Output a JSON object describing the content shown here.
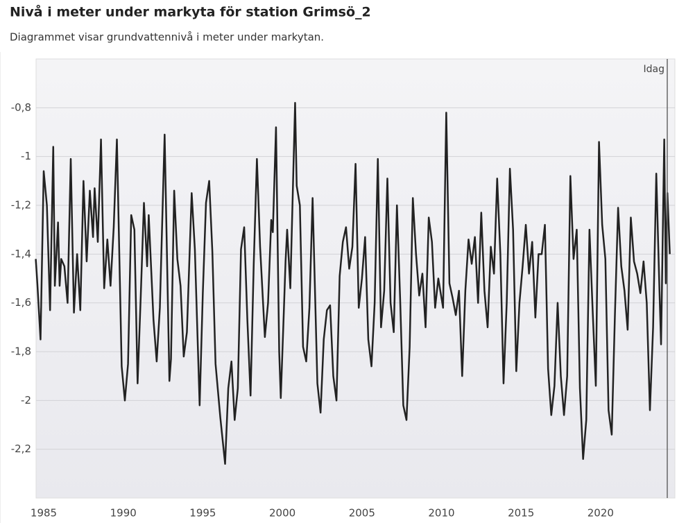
{
  "chart_data": {
    "type": "line",
    "title": "Nivå i meter under markyta för station Grimsö_2",
    "subtitle": "Diagrammet visar grundvattennivå i meter under markytan.",
    "x": [
      1984.5,
      1984.6,
      1984.8,
      1985.0,
      1985.2,
      1985.4,
      1985.6,
      1985.7,
      1985.9,
      1986.0,
      1986.1,
      1986.3,
      1986.5,
      1986.7,
      1986.9,
      1987.1,
      1987.3,
      1987.5,
      1987.7,
      1987.9,
      1988.1,
      1988.2,
      1988.4,
      1988.6,
      1988.8,
      1989.0,
      1989.2,
      1989.4,
      1989.6,
      1989.9,
      1990.1,
      1990.3,
      1990.5,
      1990.7,
      1990.9,
      1991.1,
      1991.3,
      1991.5,
      1991.6,
      1991.9,
      1992.1,
      1992.3,
      1992.6,
      1992.9,
      1993.0,
      1993.2,
      1993.4,
      1993.6,
      1993.8,
      1994.0,
      1994.3,
      1994.5,
      1994.8,
      1995.0,
      1995.2,
      1995.4,
      1995.6,
      1995.8,
      1996.1,
      1996.4,
      1996.6,
      1996.8,
      1997.0,
      1997.2,
      1997.4,
      1997.6,
      1997.8,
      1998.0,
      1998.2,
      1998.4,
      1998.6,
      1998.9,
      1999.1,
      1999.3,
      1999.4,
      1999.6,
      1999.8,
      1999.9,
      2000.1,
      2000.2,
      2000.3,
      2000.5,
      2000.8,
      2000.9,
      2001.1,
      2001.3,
      2001.5,
      2001.7,
      2001.9,
      2002.2,
      2002.4,
      2002.6,
      2002.8,
      2003.0,
      2003.2,
      2003.4,
      2003.6,
      2003.8,
      2004.0,
      2004.2,
      2004.4,
      2004.6,
      2004.8,
      2005.0,
      2005.2,
      2005.4,
      2005.6,
      2005.8,
      2006.0,
      2006.2,
      2006.4,
      2006.6,
      2006.8,
      2007.0,
      2007.2,
      2007.4,
      2007.6,
      2007.8,
      2008.0,
      2008.2,
      2008.4,
      2008.6,
      2008.8,
      2009.0,
      2009.2,
      2009.4,
      2009.6,
      2009.8,
      2010.1,
      2010.3,
      2010.5,
      2010.7,
      2010.9,
      2011.1,
      2011.3,
      2011.5,
      2011.7,
      2011.9,
      2012.1,
      2012.3,
      2012.5,
      2012.7,
      2012.9,
      2013.1,
      2013.3,
      2013.5,
      2013.7,
      2013.9,
      2014.1,
      2014.3,
      2014.5,
      2014.7,
      2014.9,
      2015.1,
      2015.3,
      2015.5,
      2015.7,
      2015.9,
      2016.1,
      2016.3,
      2016.5,
      2016.7,
      2016.9,
      2017.1,
      2017.3,
      2017.5,
      2017.7,
      2017.9,
      2018.1,
      2018.3,
      2018.5,
      2018.7,
      2018.9,
      2019.1,
      2019.3,
      2019.5,
      2019.7,
      2019.9,
      2020.1,
      2020.3,
      2020.5,
      2020.7,
      2020.9,
      2021.1,
      2021.3,
      2021.5,
      2021.7,
      2021.9,
      2022.1,
      2022.3,
      2022.5,
      2022.7,
      2022.9,
      2023.1,
      2023.3,
      2023.5,
      2023.7,
      2023.8,
      2024.0,
      2024.1,
      2024.2,
      2024.35
    ],
    "values": [
      -1.42,
      -1.52,
      -1.75,
      -1.06,
      -1.2,
      -1.63,
      -0.96,
      -1.53,
      -1.27,
      -1.53,
      -1.42,
      -1.45,
      -1.6,
      -1.01,
      -1.64,
      -1.4,
      -1.63,
      -1.1,
      -1.43,
      -1.14,
      -1.33,
      -1.13,
      -1.35,
      -0.93,
      -1.54,
      -1.34,
      -1.53,
      -1.29,
      -0.93,
      -1.86,
      -2.0,
      -1.85,
      -1.24,
      -1.3,
      -1.93,
      -1.57,
      -1.19,
      -1.45,
      -1.24,
      -1.67,
      -1.84,
      -1.62,
      -0.91,
      -1.92,
      -1.83,
      -1.14,
      -1.42,
      -1.53,
      -1.82,
      -1.72,
      -1.15,
      -1.38,
      -2.02,
      -1.56,
      -1.19,
      -1.1,
      -1.39,
      -1.85,
      -2.07,
      -2.26,
      -1.95,
      -1.84,
      -2.08,
      -1.95,
      -1.38,
      -1.29,
      -1.67,
      -1.98,
      -1.44,
      -1.01,
      -1.37,
      -1.74,
      -1.6,
      -1.26,
      -1.31,
      -0.88,
      -1.8,
      -1.99,
      -1.62,
      -1.43,
      -1.3,
      -1.54,
      -0.78,
      -1.12,
      -1.2,
      -1.78,
      -1.84,
      -1.62,
      -1.17,
      -1.93,
      -2.05,
      -1.75,
      -1.63,
      -1.61,
      -1.9,
      -2.0,
      -1.49,
      -1.35,
      -1.29,
      -1.46,
      -1.37,
      -1.03,
      -1.62,
      -1.5,
      -1.33,
      -1.75,
      -1.86,
      -1.6,
      -1.01,
      -1.7,
      -1.55,
      -1.09,
      -1.6,
      -1.72,
      -1.2,
      -1.58,
      -2.02,
      -2.08,
      -1.78,
      -1.17,
      -1.4,
      -1.57,
      -1.48,
      -1.7,
      -1.25,
      -1.35,
      -1.62,
      -1.5,
      -1.62,
      -0.82,
      -1.52,
      -1.58,
      -1.65,
      -1.55,
      -1.9,
      -1.55,
      -1.34,
      -1.44,
      -1.33,
      -1.6,
      -1.23,
      -1.55,
      -1.7,
      -1.37,
      -1.48,
      -1.09,
      -1.4,
      -1.93,
      -1.6,
      -1.05,
      -1.3,
      -1.88,
      -1.6,
      -1.45,
      -1.28,
      -1.48,
      -1.35,
      -1.66,
      -1.4,
      -1.4,
      -1.28,
      -1.87,
      -2.06,
      -1.94,
      -1.6,
      -1.9,
      -2.06,
      -1.9,
      -1.08,
      -1.42,
      -1.3,
      -1.95,
      -2.24,
      -2.08,
      -1.3,
      -1.63,
      -1.94,
      -0.94,
      -1.28,
      -1.42,
      -2.04,
      -2.14,
      -1.65,
      -1.21,
      -1.45,
      -1.55,
      -1.71,
      -1.25,
      -1.43,
      -1.48,
      -1.56,
      -1.43,
      -1.6,
      -2.04,
      -1.7,
      -1.07,
      -1.55,
      -1.77,
      -0.93,
      -1.52,
      -1.15,
      -1.4
    ],
    "color": "#222222",
    "xlim": [
      1984.52,
      2024.67
    ],
    "xticks": [
      1985,
      1990,
      1995,
      2000,
      2005,
      2010,
      2015,
      2020
    ],
    "ylim": [
      -2.4,
      -0.6
    ],
    "yticks": [
      {
        "value": -2.2,
        "label": "-2,2"
      },
      {
        "value": -2,
        "label": "-2"
      },
      {
        "value": -1.8,
        "label": "-1,8"
      },
      {
        "value": -1.6,
        "label": "-1,6"
      },
      {
        "value": -1.4,
        "label": "-1,4"
      },
      {
        "value": -1.2,
        "label": "-1,2"
      },
      {
        "value": -1,
        "label": "-1"
      },
      {
        "value": -0.8,
        "label": "-0,8"
      }
    ],
    "grid": true,
    "annotations": [
      {
        "x": 2024.19,
        "label": "Idag"
      }
    ]
  }
}
